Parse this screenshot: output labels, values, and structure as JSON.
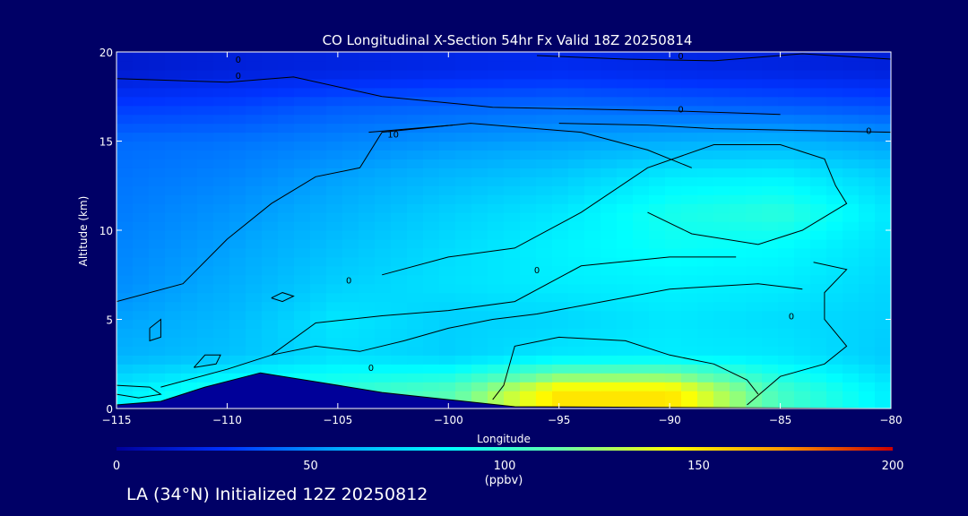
{
  "chart_data": {
    "type": "heatmap",
    "title": "CO Longitudinal X-Section 54hr  Fx Valid 18Z 20250814",
    "xlabel": "Longitude",
    "ylabel": "Altitude (km)",
    "xlim": [
      -115,
      -80
    ],
    "ylim": [
      0,
      20
    ],
    "x_ticks": [
      -115,
      -110,
      -105,
      -100,
      -95,
      -90,
      -85,
      -80
    ],
    "y_ticks": [
      0,
      5,
      10,
      15,
      20
    ],
    "colorbar": {
      "min": 0,
      "max": 200,
      "ticks": [
        0,
        50,
        100,
        150,
        200
      ],
      "units": "(ppbv)",
      "colors": [
        "#000099",
        "#0033ff",
        "#00aaff",
        "#00ffff",
        "#66ffaa",
        "#ffff00",
        "#ff9900",
        "#cc0000"
      ]
    },
    "contour_label": "0",
    "contour_label_upper": "10",
    "longitudes": [
      -115,
      -110,
      -105,
      -100,
      -95,
      -90,
      -85,
      -80
    ],
    "altitudes": [
      1,
      3,
      5,
      7,
      9,
      11,
      13,
      15,
      17,
      19
    ],
    "values": [
      [
        80,
        95,
        100,
        110,
        150,
        150,
        105,
        80
      ],
      [
        60,
        65,
        75,
        70,
        78,
        80,
        78,
        68
      ],
      [
        55,
        62,
        78,
        70,
        72,
        78,
        74,
        70
      ],
      [
        50,
        58,
        70,
        76,
        80,
        82,
        80,
        72
      ],
      [
        48,
        55,
        65,
        74,
        82,
        88,
        85,
        75
      ],
      [
        46,
        52,
        60,
        70,
        78,
        92,
        98,
        78
      ],
      [
        44,
        48,
        55,
        62,
        68,
        80,
        82,
        70
      ],
      [
        42,
        44,
        48,
        52,
        55,
        58,
        60,
        55
      ],
      [
        30,
        32,
        38,
        40,
        42,
        40,
        38,
        35
      ],
      [
        15,
        18,
        20,
        22,
        24,
        22,
        20,
        18
      ]
    ],
    "terrain": [
      [
        -115,
        0.2
      ],
      [
        -113,
        0.4
      ],
      [
        -111,
        1.2
      ],
      [
        -108.5,
        2.0
      ],
      [
        -106,
        1.5
      ],
      [
        -103,
        0.9
      ],
      [
        -100,
        0.5
      ],
      [
        -97,
        0.1
      ],
      [
        -80,
        0.0
      ]
    ]
  },
  "footer": {
    "text": "LA (34°N) Initialized 12Z 20250812"
  }
}
